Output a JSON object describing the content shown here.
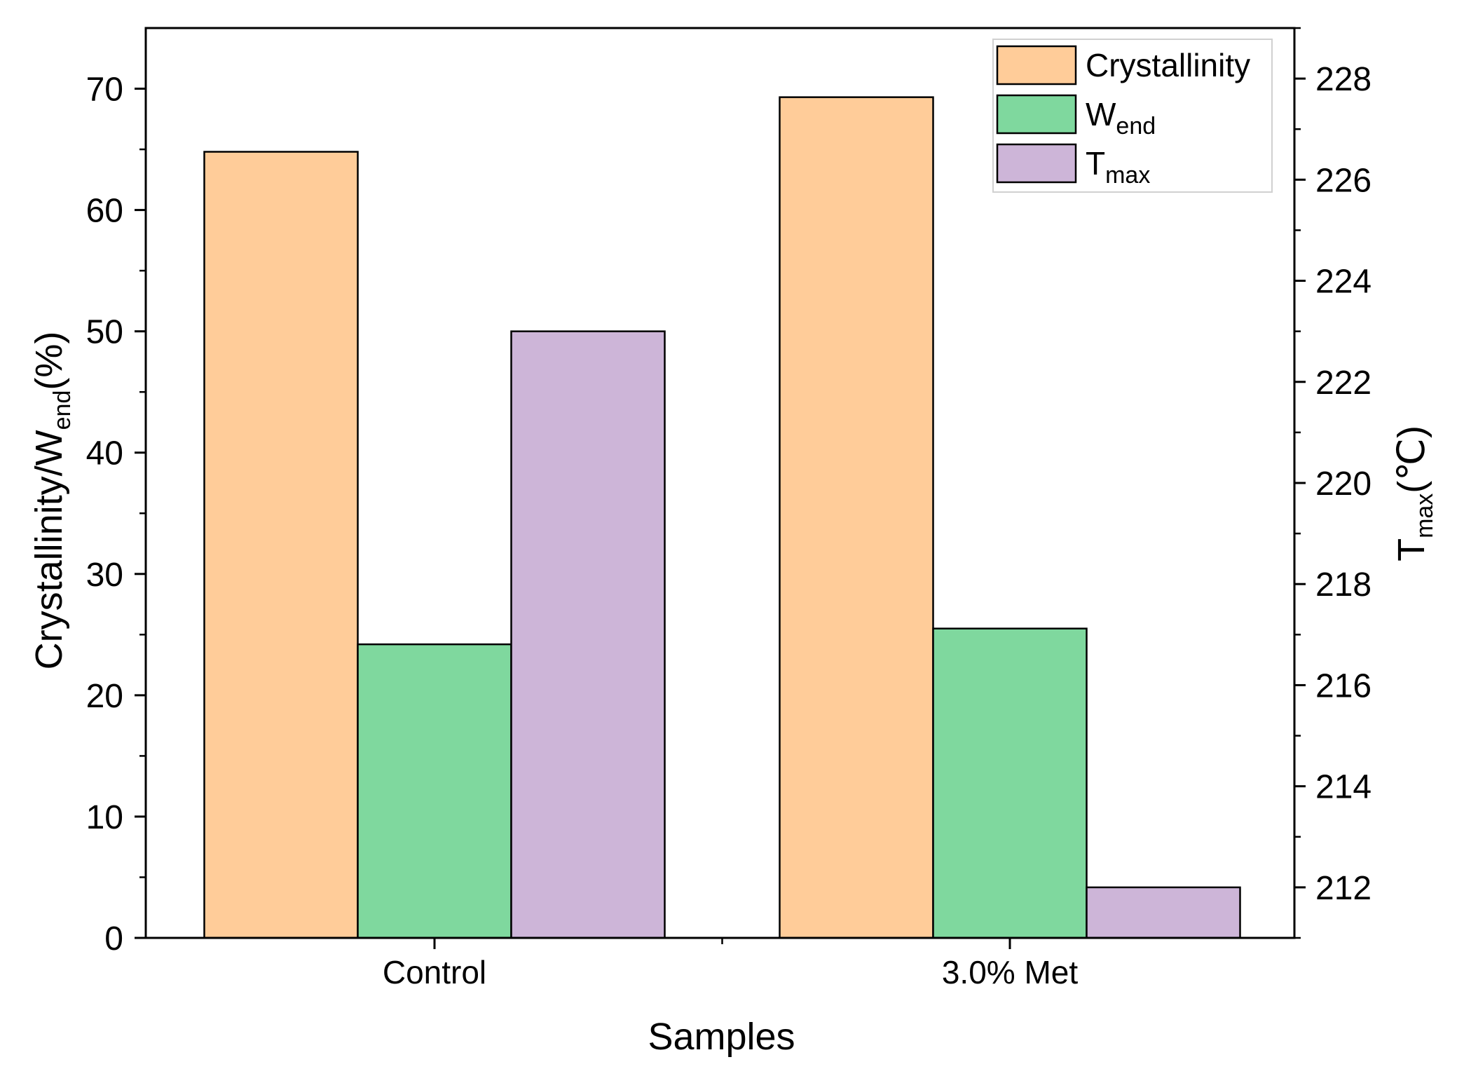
{
  "chart_data": {
    "type": "bar",
    "title": "",
    "xlabel": "Samples",
    "categories": [
      "Control",
      "3.0% Met"
    ],
    "left_axis": {
      "label_main": "Crystallinity/W",
      "label_sub": "end",
      "label_suffix": "(%)",
      "ylim": [
        0,
        75
      ],
      "ticks": [
        0,
        10,
        20,
        30,
        40,
        50,
        60,
        70
      ]
    },
    "right_axis": {
      "label_main": "T",
      "label_sub": "max",
      "label_suffix": "(℃)",
      "ylim": [
        211,
        229
      ],
      "ticks": [
        212,
        214,
        216,
        218,
        220,
        222,
        224,
        226,
        228
      ]
    },
    "series": [
      {
        "name": "Crystallinity",
        "name_main": "Crystallinity",
        "name_sub": "",
        "axis": "left",
        "color": "#FFCC99",
        "values": [
          64.8,
          69.3
        ]
      },
      {
        "name": "W_end",
        "name_main": "W",
        "name_sub": "end",
        "axis": "left",
        "color": "#7FD89E",
        "values": [
          24.2,
          25.5
        ]
      },
      {
        "name": "T_max",
        "name_main": "T",
        "name_sub": "max",
        "axis": "right",
        "color": "#CDB5D8",
        "values": [
          223.0,
          212.0
        ]
      }
    ],
    "legend_position": "top-right",
    "grid": false
  }
}
